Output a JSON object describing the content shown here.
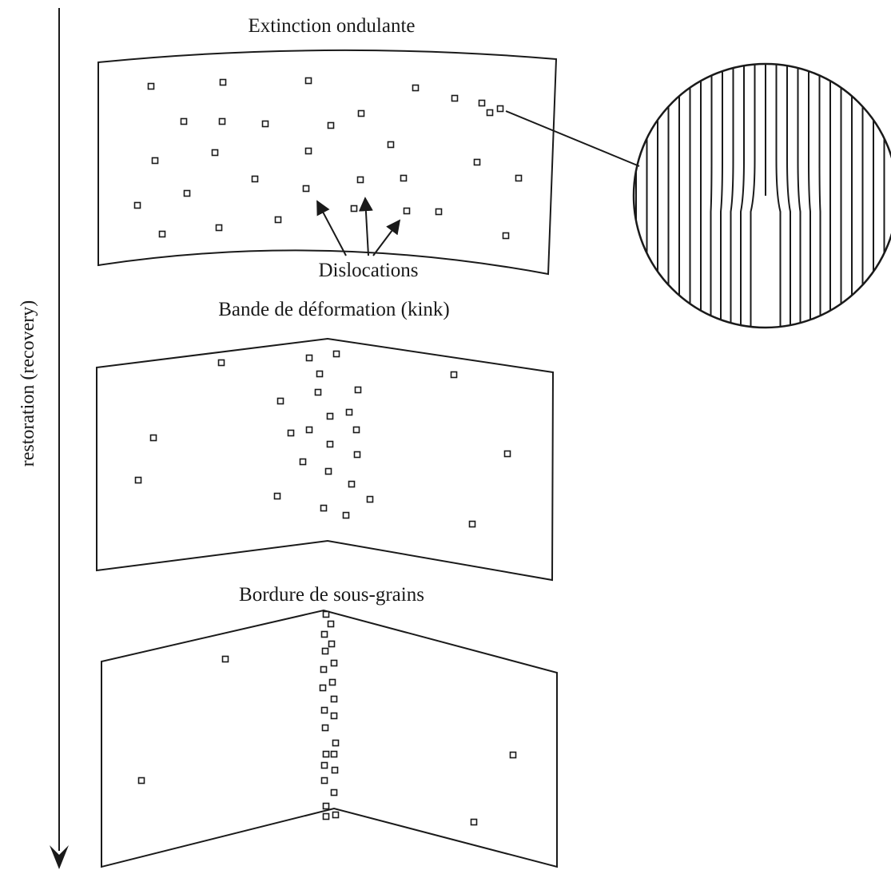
{
  "axis": {
    "label": "restoration (recovery)"
  },
  "panels": [
    {
      "id": "undulating",
      "title": "Extinction ondulante"
    },
    {
      "id": "kink",
      "title": "Bande de déformation (kink)"
    },
    {
      "id": "subgrain",
      "title": "Bordure de sous-grains"
    }
  ],
  "annotation": {
    "label": "Dislocations"
  },
  "colors": {
    "ink": "#1a1a1a",
    "background": "#ffffff"
  }
}
